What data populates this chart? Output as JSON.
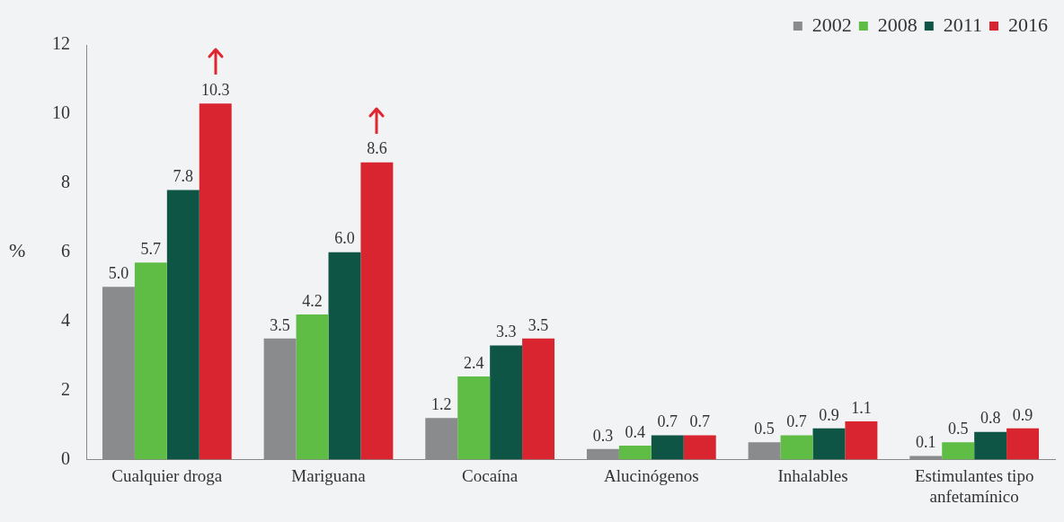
{
  "chart_data": {
    "type": "bar",
    "ylabel": "%",
    "categories": [
      "Cualquier droga",
      "Mariguana",
      "Cocaína",
      "Alucinógenos",
      "Inhalables",
      "Estimulantes tipo anfetamínico"
    ],
    "series": [
      {
        "name": "2002",
        "color": "#8a8b8c",
        "values": [
          5.0,
          3.5,
          1.2,
          0.3,
          0.5,
          0.1
        ],
        "value_labels": [
          "5.0",
          "3.5",
          "1.2",
          "0.3",
          "0.5",
          "0.1"
        ]
      },
      {
        "name": "2008",
        "color": "#5fbd46",
        "values": [
          5.7,
          4.2,
          2.4,
          0.4,
          0.7,
          0.5
        ],
        "value_labels": [
          "5.7",
          "4.2",
          "2.4",
          "0.4",
          "0.7",
          "0.5"
        ]
      },
      {
        "name": "2011",
        "color": "#0e5546",
        "values": [
          7.8,
          6.0,
          3.3,
          0.7,
          0.9,
          0.8
        ],
        "value_labels": [
          "7.8",
          "6.0",
          "3.3",
          "0.7",
          "0.9",
          "0.8"
        ]
      },
      {
        "name": "2016",
        "color": "#d8252f",
        "values": [
          10.3,
          8.6,
          3.5,
          0.7,
          1.1,
          0.9
        ],
        "value_labels": [
          "10.3",
          "8.6",
          "3.5",
          "0.7",
          "1.1",
          "0.9"
        ]
      }
    ],
    "ylim": [
      0,
      12
    ],
    "yticks": [
      0,
      2,
      4,
      6,
      8,
      10,
      12
    ],
    "grid": false,
    "legend": "top right"
  }
}
